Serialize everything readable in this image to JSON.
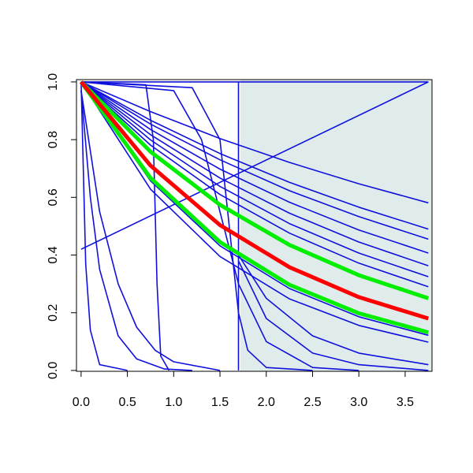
{
  "chart_data": {
    "type": "line",
    "xlim": [
      -0.05,
      3.79
    ],
    "ylim": [
      -0.003,
      1.008
    ],
    "xticks": [
      {
        "value": 0,
        "label": "0.0"
      },
      {
        "value": 0.5,
        "label": "0.5"
      },
      {
        "value": 1,
        "label": "1.0"
      },
      {
        "value": 1.5,
        "label": "1.5"
      },
      {
        "value": 2,
        "label": "2.0"
      },
      {
        "value": 2.5,
        "label": "2.5"
      },
      {
        "value": 3,
        "label": "3.0"
      },
      {
        "value": 3.5,
        "label": "3.5"
      }
    ],
    "yticks": [
      {
        "value": 0,
        "label": "0.0"
      },
      {
        "value": 0.2,
        "label": "0.2"
      },
      {
        "value": 0.4,
        "label": "0.4"
      },
      {
        "value": 0.6,
        "label": "0.6"
      },
      {
        "value": 0.8,
        "label": "0.8"
      },
      {
        "value": 1,
        "label": "1.0"
      }
    ],
    "shaded_xlim": [
      1.72,
      3.79
    ],
    "shade_color": "#e0ecec",
    "series": [
      {
        "color": "#1010dd",
        "x": [
          0,
          0.75,
          1.5,
          2.25,
          3,
          3.75
        ],
        "values": [
          1,
          0.897,
          0.804,
          0.721,
          0.647,
          0.581
        ]
      },
      {
        "color": "#1010dd",
        "x": [
          0,
          0.75,
          1.5,
          2.25,
          3,
          3.75
        ],
        "values": [
          1,
          0.867,
          0.752,
          0.652,
          0.566,
          0.49
        ]
      },
      {
        "color": "#1010dd",
        "x": [
          0,
          0.75,
          1.5,
          2.25,
          3,
          3.75
        ],
        "values": [
          1,
          0.854,
          0.73,
          0.623,
          0.533,
          0.455
        ]
      },
      {
        "color": "#1010dd",
        "x": [
          0,
          0.75,
          1.5,
          2.25,
          3,
          3.75
        ],
        "values": [
          1,
          0.835,
          0.698,
          0.583,
          0.487,
          0.407
        ]
      },
      {
        "color": "#1010dd",
        "x": [
          0,
          0.75,
          1.5,
          2.25,
          3,
          3.75
        ],
        "values": [
          1,
          0.817,
          0.667,
          0.545,
          0.445,
          0.363
        ]
      },
      {
        "color": "#1010dd",
        "x": [
          0,
          0.75,
          1.5,
          2.25,
          3,
          3.75
        ],
        "values": [
          1,
          0.799,
          0.638,
          0.509,
          0.407,
          0.325
        ]
      },
      {
        "color": "#1010dd",
        "x": [
          0,
          0.75,
          1.5,
          2.25,
          3,
          3.75
        ],
        "values": [
          1,
          0.781,
          0.61,
          0.476,
          0.372,
          0.29
        ]
      },
      {
        "color": "#1010dd",
        "x": [
          0,
          0.75,
          1.5,
          2.25,
          3,
          3.75
        ],
        "values": [
          1,
          0.657,
          0.432,
          0.284,
          0.186,
          0.122
        ]
      },
      {
        "color": "#1010dd",
        "x": [
          0,
          0.75,
          1.5,
          2.25,
          3,
          3.75
        ],
        "values": [
          1,
          0.628,
          0.395,
          0.248,
          0.156,
          0.098
        ]
      },
      {
        "color": "#1010dd",
        "x": [
          0,
          3.75
        ],
        "values": [
          0.42,
          1
        ]
      },
      {
        "color": "#1010dd",
        "x": [
          0,
          3.75
        ],
        "values": [
          1,
          1
        ]
      },
      {
        "color": "#1010dd",
        "x": [
          0,
          0.05,
          0.1,
          0.2,
          0.5
        ],
        "values": [
          1,
          0.37,
          0.14,
          0.02,
          0
        ]
      },
      {
        "color": "#1010dd",
        "x": [
          0,
          0.1,
          0.2,
          0.4,
          0.6,
          0.9,
          1.2
        ],
        "values": [
          0.97,
          0.6,
          0.35,
          0.12,
          0.04,
          0.005,
          0
        ]
      },
      {
        "color": "#1010dd",
        "x": [
          0,
          0.2,
          0.4,
          0.6,
          0.8,
          1.0,
          1.5
        ],
        "values": [
          0.97,
          0.55,
          0.3,
          0.15,
          0.07,
          0.03,
          0
        ]
      },
      {
        "color": "#1010dd",
        "x": [
          0,
          0.7,
          0.78,
          0.82,
          0.86,
          0.95
        ],
        "values": [
          1,
          0.99,
          0.8,
          0.3,
          0.05,
          0
        ]
      },
      {
        "color": "#1010dd",
        "x": [
          0,
          1.2,
          1.5,
          1.6,
          1.7,
          1.8,
          2.0,
          2.5
        ],
        "values": [
          1,
          0.98,
          0.8,
          0.5,
          0.2,
          0.07,
          0.01,
          0
        ]
      },
      {
        "color": "#1010dd",
        "x": [
          0,
          1,
          1.3,
          1.5,
          1.7,
          2,
          2.5,
          3
        ],
        "values": [
          1,
          0.97,
          0.8,
          0.55,
          0.3,
          0.1,
          0.01,
          0
        ]
      },
      {
        "color": "#1010dd",
        "x": [
          1.7,
          1.7
        ],
        "values": [
          0,
          1
        ]
      },
      {
        "color": "#1010dd",
        "x": [
          1.7,
          2.0,
          2.5,
          3,
          3.75
        ],
        "values": [
          0.4,
          0.25,
          0.12,
          0.06,
          0.02
        ]
      },
      {
        "color": "#1010dd",
        "x": [
          1.7,
          2.0,
          2.5,
          3,
          3.75
        ],
        "values": [
          0.38,
          0.18,
          0.06,
          0.02,
          0
        ]
      },
      {
        "color": "#00ee00",
        "x": [
          0,
          0.75,
          1.5,
          2.25,
          3,
          3.75
        ],
        "values": [
          1,
          0.758,
          0.574,
          0.435,
          0.33,
          0.25
        ]
      },
      {
        "color": "#00ee00",
        "x": [
          0,
          0.75,
          1.5,
          2.25,
          3,
          3.75
        ],
        "values": [
          1,
          0.667,
          0.445,
          0.297,
          0.198,
          0.132
        ]
      },
      {
        "color": "#ff0000",
        "x": [
          0,
          0.75,
          1.5,
          2.25,
          3,
          3.75
        ],
        "values": [
          1,
          0.71,
          0.504,
          0.358,
          0.254,
          0.18
        ]
      }
    ]
  }
}
